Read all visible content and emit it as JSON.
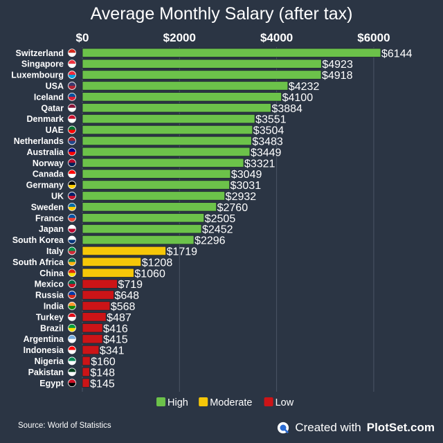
{
  "title": "Average Monthly Salary (after tax)",
  "source": "Source: World of Statistics",
  "credit": {
    "prefix": "Created with",
    "brand": "PlotSet.com"
  },
  "colors": {
    "background": "#2b3544",
    "High": "#6cc24a",
    "Moderate": "#f6c708",
    "Low": "#cc1417",
    "grid": "#4b5566"
  },
  "legend": [
    {
      "label": "High",
      "color": "#6cc24a"
    },
    {
      "label": "Moderate",
      "color": "#f6c708"
    },
    {
      "label": "Low",
      "color": "#cc1417"
    }
  ],
  "chart_data": {
    "type": "bar",
    "orientation": "horizontal",
    "title": "Average Monthly Salary (after tax)",
    "xlim": [
      0,
      6144
    ],
    "xticks": [
      0,
      2000,
      4000,
      6000
    ],
    "xtick_labels": [
      "$0",
      "$2000",
      "$4000",
      "$6000"
    ],
    "grid": true,
    "legend_position": "bottom",
    "value_prefix": "$",
    "categories": [
      "Switzerland",
      "Singapore",
      "Luxembourg",
      "USA",
      "Iceland",
      "Qatar",
      "Denmark",
      "UAE",
      "Netherlands",
      "Australia",
      "Norway",
      "Canada",
      "Germany",
      "UK",
      "Sweden",
      "France",
      "Japan",
      "South Korea",
      "Italy",
      "South Africa",
      "China",
      "Mexico",
      "Russia",
      "India",
      "Turkey",
      "Brazil",
      "Argentina",
      "Indonesia",
      "Nigeria",
      "Pakistan",
      "Egypt"
    ],
    "values": [
      6144,
      4923,
      4918,
      4232,
      4100,
      3884,
      3551,
      3504,
      3483,
      3449,
      3321,
      3049,
      3031,
      2932,
      2760,
      2505,
      2452,
      2296,
      1719,
      1208,
      1060,
      719,
      648,
      568,
      487,
      416,
      415,
      341,
      160,
      148,
      145
    ],
    "groups": [
      "High",
      "High",
      "High",
      "High",
      "High",
      "High",
      "High",
      "High",
      "High",
      "High",
      "High",
      "High",
      "High",
      "High",
      "High",
      "High",
      "High",
      "High",
      "Moderate",
      "Moderate",
      "Moderate",
      "Low",
      "Low",
      "Low",
      "Low",
      "Low",
      "Low",
      "Low",
      "Low",
      "Low",
      "Low"
    ],
    "flag_icons": [
      "switzerland-flag-icon",
      "singapore-flag-icon",
      "luxembourg-flag-icon",
      "usa-flag-icon",
      "iceland-flag-icon",
      "qatar-flag-icon",
      "denmark-flag-icon",
      "uae-flag-icon",
      "netherlands-flag-icon",
      "australia-flag-icon",
      "norway-flag-icon",
      "canada-flag-icon",
      "germany-flag-icon",
      "uk-flag-icon",
      "sweden-flag-icon",
      "france-flag-icon",
      "japan-flag-icon",
      "south-korea-flag-icon",
      "italy-flag-icon",
      "south-africa-flag-icon",
      "china-flag-icon",
      "mexico-flag-icon",
      "russia-flag-icon",
      "india-flag-icon",
      "turkey-flag-icon",
      "brazil-flag-icon",
      "argentina-flag-icon",
      "indonesia-flag-icon",
      "nigeria-flag-icon",
      "pakistan-flag-icon",
      "egypt-flag-icon"
    ]
  }
}
